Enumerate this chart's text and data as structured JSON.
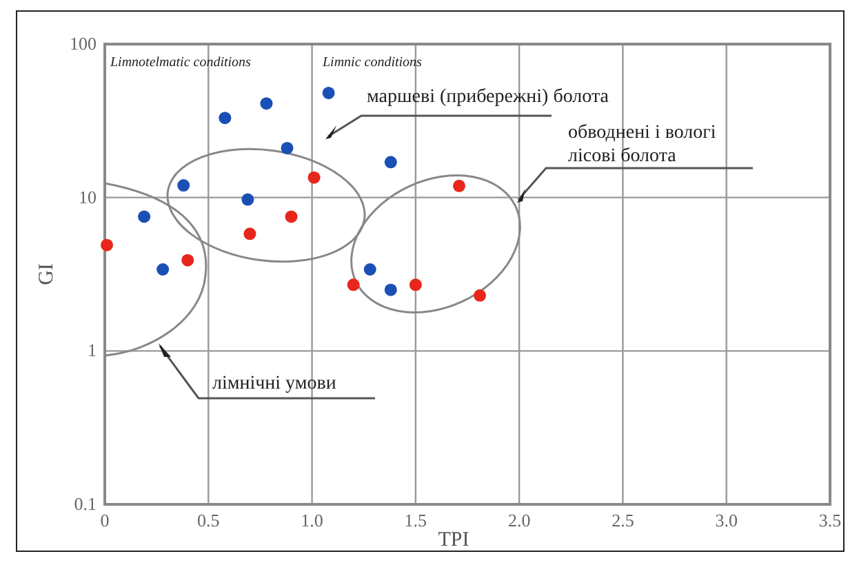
{
  "chart_data": {
    "type": "scatter",
    "xlabel": "TPI",
    "ylabel": "GI",
    "log": "y",
    "grid": true,
    "marker": "circle",
    "xlim": [
      0,
      3.5
    ],
    "xticks": [
      0,
      {
        "value": 0.5,
        "label": "0.5"
      },
      {
        "value": 1,
        "label": "1.0"
      },
      {
        "value": 1.5,
        "label": "1.5"
      },
      {
        "value": 2,
        "label": "2.0"
      },
      {
        "value": 2.5,
        "label": "2.5"
      },
      {
        "value": 3,
        "label": "3.0"
      },
      {
        "value": 3.5,
        "label": "3.5"
      }
    ],
    "ylim": [
      0.1,
      100
    ],
    "yticks": [
      0.1,
      1,
      10,
      100
    ],
    "series": [
      {
        "color": "#1a4fb5",
        "x": [
          1.08,
          0.78,
          0.58,
          0.88,
          1.38,
          0.38,
          0.69,
          0.19,
          0.28,
          1.28,
          1.38
        ],
        "values": [
          48,
          41,
          33,
          21,
          17,
          12,
          9.7,
          7.5,
          3.4,
          3.4,
          2.5
        ]
      },
      {
        "color": "#e8261c",
        "x": [
          0.01,
          0.4,
          1.01,
          0.7,
          0.9,
          1.71,
          1.2,
          1.5,
          1.81
        ],
        "values": [
          4.9,
          3.9,
          13.5,
          5.8,
          7.5,
          11.9,
          2.7,
          2.7,
          2.3
        ]
      }
    ],
    "annotations": [
      "Limnotelmatic conditions",
      "Limnic conditions",
      "маршеві (прибережні) болота",
      "обводнені і вологі\nлісові болота",
      "лімнічні умови"
    ]
  }
}
